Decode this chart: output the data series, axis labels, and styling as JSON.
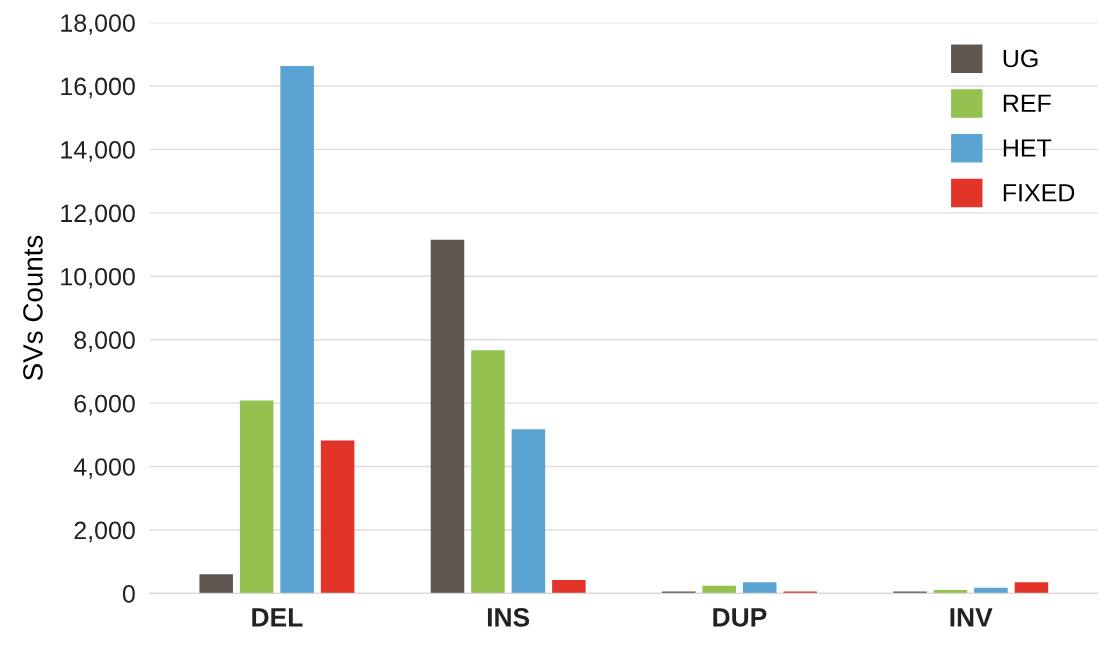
{
  "chart_data": {
    "type": "bar",
    "ylabel": "SVs Counts",
    "categories": [
      "DEL",
      "INS",
      "DUP",
      "INV"
    ],
    "series": [
      {
        "name": "UG",
        "color": "#5f5650",
        "values": [
          600,
          11150,
          60,
          60
        ]
      },
      {
        "name": "REF",
        "color": "#95c150",
        "values": [
          6080,
          7670,
          240,
          110
        ]
      },
      {
        "name": "HET",
        "color": "#5ba3d2",
        "values": [
          16630,
          5180,
          350,
          180
        ]
      },
      {
        "name": "FIXED",
        "color": "#e3342a",
        "values": [
          4820,
          420,
          60,
          350
        ]
      }
    ],
    "ylim": [
      0,
      18000
    ],
    "yticks": [
      {
        "value": 0,
        "label": "0"
      },
      {
        "value": 2000,
        "label": "2,000"
      },
      {
        "value": 4000,
        "label": "4,000"
      },
      {
        "value": 6000,
        "label": "6,000"
      },
      {
        "value": 8000,
        "label": "8,000"
      },
      {
        "value": 10000,
        "label": "10,000"
      },
      {
        "value": 12000,
        "label": "12,000"
      },
      {
        "value": 14000,
        "label": "14,000"
      },
      {
        "value": 16000,
        "label": "16,000"
      },
      {
        "value": 18000,
        "label": "18,000"
      }
    ],
    "grid": "y",
    "legend": "top right"
  }
}
